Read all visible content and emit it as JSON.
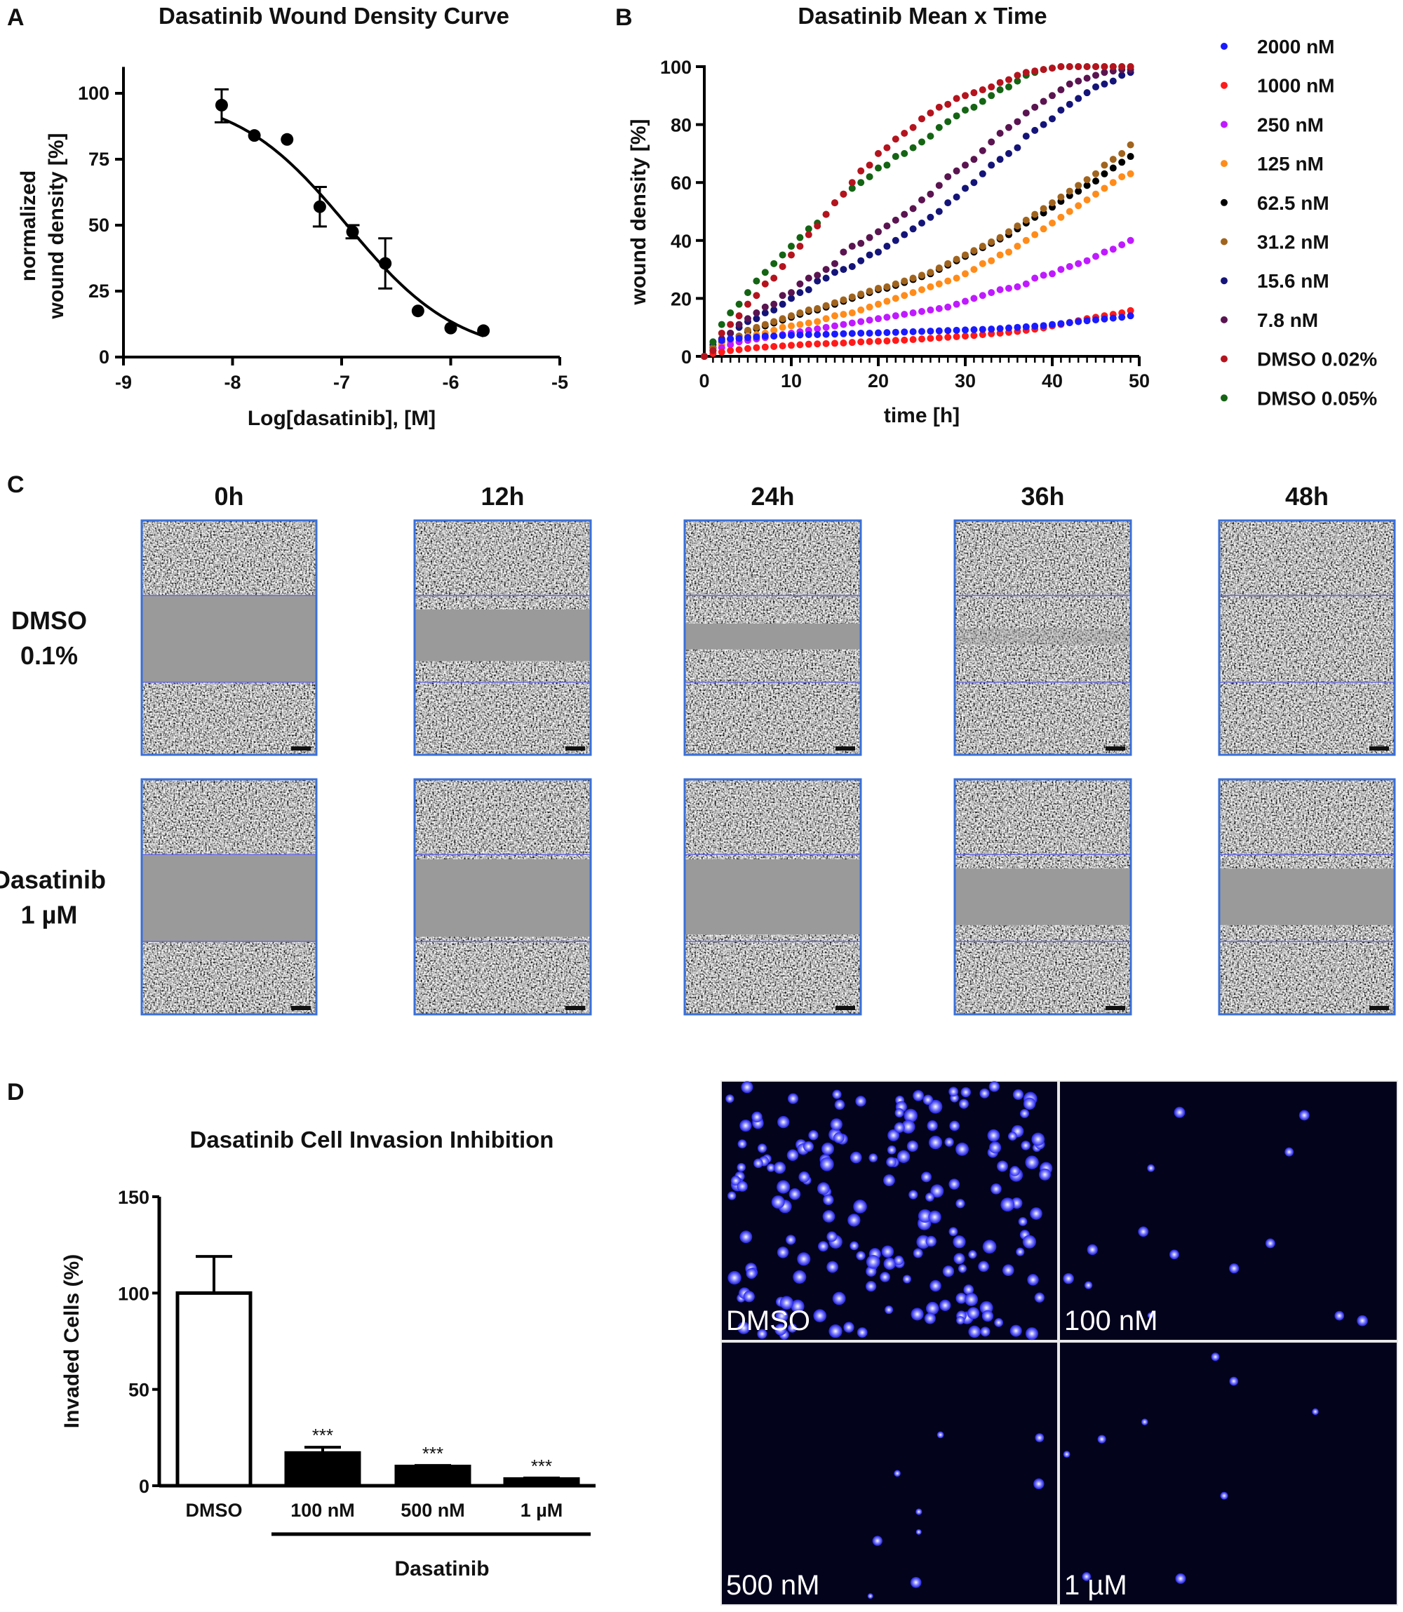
{
  "panels": {
    "a": "A",
    "b": "B",
    "c": "C",
    "d": "D"
  },
  "chart_data": [
    {
      "type": "scatter",
      "title": "Dasatinib Wound Density Curve",
      "xlabel": "Log[dasatinib], [M]",
      "ylabel_lines": [
        "normalized",
        "wound density [%]"
      ],
      "xlim": [
        -9,
        -5
      ],
      "ylim": [
        0,
        110
      ],
      "xticks": [
        -9,
        -8,
        -7,
        -6,
        -5
      ],
      "yticks": [
        0,
        25,
        50,
        75,
        100
      ],
      "points": [
        {
          "x": -8.1,
          "y": 95.5,
          "err_low": 89,
          "err_high": 101.5
        },
        {
          "x": -7.8,
          "y": 84
        },
        {
          "x": -7.5,
          "y": 82.5
        },
        {
          "x": -7.2,
          "y": 57,
          "err_low": 49.5,
          "err_high": 64.5
        },
        {
          "x": -6.9,
          "y": 47.5,
          "err_low": 45,
          "err_high": 50
        },
        {
          "x": -6.6,
          "y": 35.5,
          "err_low": 26,
          "err_high": 45
        },
        {
          "x": -6.3,
          "y": 17.5
        },
        {
          "x": -6.0,
          "y": 11
        },
        {
          "x": -5.7,
          "y": 10
        }
      ],
      "fit": {
        "model": "sigmoidal dose-response",
        "top": 100,
        "bottom": 0,
        "logIC50": -6.95,
        "hill": 0.85,
        "x_range": [
          -8.1,
          -5.7
        ]
      },
      "color": "#000000"
    },
    {
      "type": "scatter",
      "title": "Dasatinib Mean x Time",
      "xlabel": "time [h]",
      "ylabel": "wound density [%]",
      "xlim": [
        0,
        50
      ],
      "ylim": [
        0,
        100
      ],
      "xticks": [
        0,
        10,
        20,
        30,
        40,
        50
      ],
      "yticks": [
        0,
        20,
        40,
        60,
        80,
        100
      ],
      "legend": "right",
      "x": [
        0,
        1,
        2,
        3,
        4,
        5,
        6,
        7,
        8,
        9,
        10,
        11,
        12,
        13,
        14,
        15,
        16,
        17,
        18,
        19,
        20,
        21,
        22,
        23,
        24,
        25,
        26,
        27,
        28,
        29,
        30,
        31,
        32,
        33,
        34,
        35,
        36,
        37,
        38,
        39,
        40,
        41,
        42,
        43,
        44,
        45,
        46,
        47,
        48,
        49
      ],
      "series": [
        {
          "name": "2000 nM",
          "color": "#1a1aff",
          "values": [
            0,
            5,
            5.5,
            6,
            6.2,
            6.5,
            6.7,
            7,
            7,
            7.2,
            7.3,
            7.4,
            7.5,
            7.5,
            7.6,
            7.7,
            7.8,
            7.9,
            8,
            8,
            8.1,
            8.2,
            8.3,
            8.4,
            8.5,
            8.6,
            8.7,
            8.8,
            8.9,
            9,
            9.1,
            9.2,
            9.3,
            9.4,
            9.6,
            9.8,
            10,
            10.2,
            10.4,
            10.6,
            11,
            11.3,
            11.6,
            12,
            12.3,
            12.6,
            12.9,
            13.2,
            13.5,
            14
          ]
        },
        {
          "name": "1000 nM",
          "color": "#ff1a1a",
          "values": [
            0,
            1,
            1.5,
            2,
            2.3,
            2.7,
            3,
            3.2,
            3.4,
            3.6,
            3.8,
            4,
            4.2,
            4.3,
            4.4,
            4.5,
            4.6,
            4.8,
            5,
            5.1,
            5.2,
            5.3,
            5.5,
            5.6,
            5.8,
            6,
            6.2,
            6.4,
            6.6,
            6.8,
            7,
            7.2,
            7.5,
            7.8,
            8,
            8.3,
            8.6,
            9,
            9.4,
            9.8,
            10.5,
            11,
            11.7,
            12.3,
            13,
            13.5,
            14,
            14.5,
            15,
            15.8
          ]
        },
        {
          "name": "250 nM",
          "color": "#bf1aff",
          "values": [
            0,
            2,
            3,
            4,
            5,
            5.5,
            6,
            6.5,
            7,
            7.5,
            8,
            8.5,
            9,
            9.5,
            10,
            10.5,
            11,
            11.5,
            12,
            12.5,
            13,
            13.5,
            14,
            14.5,
            15,
            15.5,
            16,
            16.5,
            17,
            18,
            19,
            20,
            21,
            22,
            23,
            23.5,
            24,
            25,
            27,
            28,
            28.5,
            30,
            31,
            32,
            33,
            34.5,
            36,
            37,
            38.5,
            40
          ]
        },
        {
          "name": "125 nM",
          "color": "#ff8c1a",
          "values": [
            0,
            2,
            4,
            5,
            6,
            7,
            7.5,
            8,
            9,
            10,
            10.5,
            11,
            11.5,
            12,
            13,
            14,
            14.5,
            15,
            16,
            17,
            18,
            19,
            20,
            21,
            22,
            23,
            24,
            25,
            26,
            27,
            28.5,
            30,
            32,
            33,
            35,
            36,
            38,
            40,
            42,
            44,
            46,
            48,
            50,
            52,
            54,
            56,
            58,
            60,
            62,
            63
          ]
        },
        {
          "name": "62.5 nM",
          "color": "#000000",
          "values": [
            0,
            3,
            5,
            6,
            7,
            8.5,
            9.5,
            10.5,
            11.5,
            12.5,
            13.5,
            14.5,
            15.5,
            16,
            17,
            18,
            19,
            20,
            21,
            22,
            23,
            23.5,
            24.5,
            25.5,
            26.5,
            27.5,
            28.5,
            30,
            31.5,
            33,
            34.5,
            36,
            37.5,
            39,
            40.5,
            42,
            44,
            46,
            48,
            49.5,
            51.5,
            53.5,
            55.5,
            57,
            59,
            60.5,
            63,
            65,
            67,
            69
          ]
        },
        {
          "name": "31.2 nM",
          "color": "#a0641e",
          "values": [
            0,
            3,
            5,
            6,
            7,
            9,
            10,
            11,
            12,
            13,
            14,
            15,
            16,
            16.5,
            17.5,
            18.5,
            19.5,
            20.5,
            21.5,
            22.5,
            23.5,
            24,
            25,
            26,
            27,
            28,
            29,
            30.5,
            32,
            33.5,
            35,
            36.5,
            38,
            39.5,
            41,
            43,
            45,
            47,
            49,
            51,
            53,
            55,
            57,
            59,
            61,
            63,
            66,
            68,
            70,
            73
          ]
        },
        {
          "name": "15.6 nM",
          "color": "#141478",
          "values": [
            0,
            4,
            6,
            8,
            10,
            12,
            13,
            15,
            16,
            18,
            20,
            22,
            23,
            26,
            27,
            29,
            30,
            31,
            33,
            35,
            36,
            38,
            40,
            42,
            44,
            46,
            48,
            50,
            53,
            55,
            58,
            60,
            63,
            66,
            68,
            70,
            72,
            76,
            78,
            80,
            82,
            85,
            87,
            89,
            91,
            93,
            94,
            95,
            97,
            98
          ]
        },
        {
          "name": "7.8 nM",
          "color": "#5a1450",
          "values": [
            0,
            3,
            6,
            8,
            11,
            13,
            15,
            17,
            18,
            21,
            22,
            25,
            27,
            28,
            30,
            32,
            36,
            38,
            39,
            41,
            43,
            45,
            47,
            49,
            51,
            54,
            56,
            59,
            62,
            64,
            66,
            68,
            71,
            74,
            77,
            79,
            81,
            84,
            86,
            88,
            90,
            92,
            94,
            95,
            96,
            97,
            98,
            98.5,
            99,
            99
          ]
        },
        {
          "name": "DMSO 0.02%",
          "color": "#b4141e",
          "values": [
            0,
            2,
            8,
            11,
            14,
            18,
            21,
            25,
            27,
            31,
            35,
            38,
            42,
            45,
            49,
            53,
            56,
            60,
            64,
            66,
            70,
            72,
            75,
            77,
            79,
            82,
            84,
            86,
            87,
            89,
            90,
            91,
            92,
            93,
            94.5,
            95.5,
            97,
            98,
            98.5,
            99,
            99.5,
            100,
            100,
            100,
            100,
            100,
            100,
            100,
            100,
            100
          ]
        },
        {
          "name": "DMSO 0.05%",
          "color": "#146414",
          "values": [
            0,
            5,
            11,
            15,
            18,
            22,
            26,
            29,
            32,
            35,
            38,
            41,
            44,
            46,
            49,
            53,
            56,
            58,
            60,
            62,
            65,
            66,
            69,
            70,
            72,
            74,
            76,
            79,
            81,
            83,
            85,
            86,
            88,
            90,
            92,
            93,
            95,
            97,
            98,
            99,
            99.5,
            100,
            100,
            100,
            100,
            100,
            100,
            100,
            100,
            100
          ]
        }
      ]
    },
    {
      "type": "bar",
      "title": "Dasatinib Cell Invasion Inhibition",
      "ylabel": "Invaded Cells (%)",
      "ylim": [
        0,
        150
      ],
      "yticks": [
        0,
        50,
        100,
        150
      ],
      "categories": [
        "DMSO",
        "100 nM",
        "500 nM",
        "1 µM"
      ],
      "values": [
        100,
        17,
        10,
        3.5
      ],
      "err_high": [
        119,
        20,
        10.5,
        4
      ],
      "fills": [
        "#ffffff",
        "#000000",
        "#000000",
        "#000000"
      ],
      "significance": [
        "",
        "***",
        "***",
        "***"
      ],
      "group_label": "Dasatinib"
    }
  ],
  "wound_images": {
    "columns": [
      "0h",
      "12h",
      "24h",
      "36h",
      "48h"
    ],
    "rows": [
      {
        "label_lines": [
          "DMSO",
          "0.1%"
        ]
      },
      {
        "label_lines": [
          "Dasatinib",
          "1 µM"
        ]
      }
    ],
    "border_color": "#3a6fd8",
    "wound_edge_color": "#6a6ae0"
  },
  "fluorescence_images": {
    "labels": [
      "DMSO",
      "100 nM",
      "500 nM",
      "1 µM"
    ],
    "stain_color": "#3535ff"
  }
}
